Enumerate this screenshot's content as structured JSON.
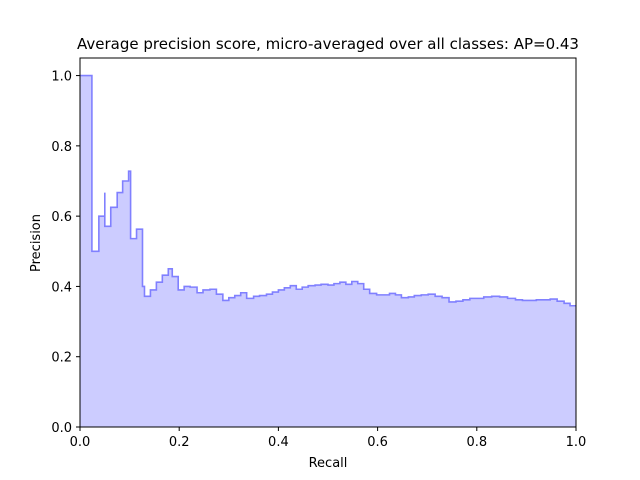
{
  "chart_data": {
    "type": "area",
    "step": "post",
    "title": "Average precision score, micro-averaged over all classes: AP=0.43",
    "xlabel": "Recall",
    "ylabel": "Precision",
    "xlim": [
      0.0,
      1.0
    ],
    "ylim": [
      0.0,
      1.05
    ],
    "x_ticks": [
      "0.0",
      "0.2",
      "0.4",
      "0.6",
      "0.8",
      "1.0"
    ],
    "y_ticks": [
      "0.0",
      "0.2",
      "0.4",
      "0.6",
      "0.8",
      "1.0"
    ],
    "grid": false,
    "fill_color": "#ccccff",
    "line_color": "#8080ff",
    "series": [
      {
        "x": [
          0.0,
          0.024,
          0.024,
          0.038,
          0.05,
          0.05,
          0.062,
          0.075,
          0.086,
          0.098,
          0.102,
          0.102,
          0.114,
          0.126,
          0.13,
          0.13,
          0.142,
          0.154,
          0.166,
          0.178,
          0.186,
          0.198,
          0.21,
          0.222,
          0.236,
          0.248,
          0.262,
          0.275,
          0.288,
          0.3,
          0.312,
          0.324,
          0.336,
          0.35,
          0.362,
          0.376,
          0.388,
          0.4,
          0.412,
          0.424,
          0.436,
          0.448,
          0.46,
          0.474,
          0.486,
          0.5,
          0.512,
          0.524,
          0.536,
          0.548,
          0.56,
          0.572,
          0.584,
          0.598,
          0.61,
          0.624,
          0.636,
          0.648,
          0.662,
          0.674,
          0.688,
          0.702,
          0.716,
          0.73,
          0.744,
          0.758,
          0.772,
          0.786,
          0.8,
          0.814,
          0.83,
          0.846,
          0.862,
          0.878,
          0.892,
          0.906,
          0.92,
          0.934,
          0.948,
          0.962,
          0.976,
          0.988,
          1.0
        ],
        "y": [
          1.0,
          1.0,
          0.5,
          0.6,
          0.667,
          0.571,
          0.625,
          0.667,
          0.7,
          0.728,
          0.728,
          0.536,
          0.563,
          0.4,
          0.4,
          0.372,
          0.39,
          0.412,
          0.432,
          0.45,
          0.428,
          0.39,
          0.4,
          0.398,
          0.382,
          0.39,
          0.392,
          0.378,
          0.36,
          0.368,
          0.374,
          0.382,
          0.366,
          0.372,
          0.374,
          0.378,
          0.384,
          0.39,
          0.396,
          0.402,
          0.392,
          0.398,
          0.402,
          0.404,
          0.406,
          0.404,
          0.408,
          0.412,
          0.406,
          0.414,
          0.408,
          0.392,
          0.38,
          0.376,
          0.376,
          0.38,
          0.376,
          0.368,
          0.37,
          0.374,
          0.376,
          0.378,
          0.372,
          0.368,
          0.356,
          0.358,
          0.362,
          0.366,
          0.366,
          0.37,
          0.372,
          0.37,
          0.366,
          0.362,
          0.36,
          0.36,
          0.362,
          0.362,
          0.364,
          0.358,
          0.352,
          0.345,
          0.345
        ]
      }
    ]
  }
}
